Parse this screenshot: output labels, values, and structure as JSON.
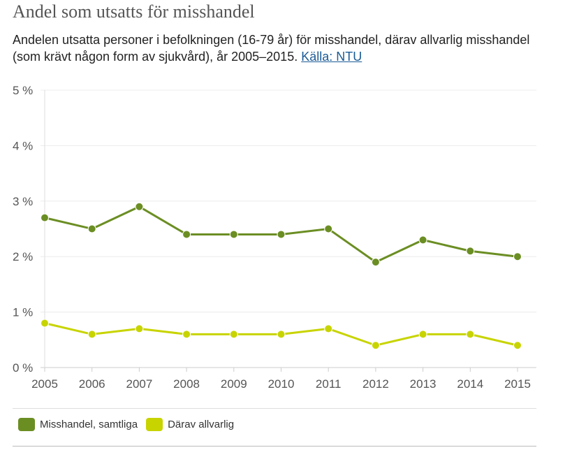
{
  "title": "Andel som utsatts för misshandel",
  "description": "Andelen utsatta personer i befolkningen (16-79 år) för misshandel, därav allvarlig misshandel (som krävt någon form av sjukvård), år 2005–2015.",
  "source_link": "Källa: NTU",
  "chart_data": {
    "type": "line",
    "categories": [
      "2005",
      "2006",
      "2007",
      "2008",
      "2009",
      "2010",
      "2011",
      "2012",
      "2013",
      "2014",
      "2015"
    ],
    "ylim": [
      0,
      5
    ],
    "yticks": [
      "0 %",
      "1 %",
      "2 %",
      "3 %",
      "4 %",
      "5 %"
    ],
    "grid": true,
    "legend_position": "bottom",
    "series": [
      {
        "name": "Misshandel, samtliga",
        "color": "#6b8e23",
        "values": [
          2.7,
          2.5,
          2.9,
          2.4,
          2.4,
          2.4,
          2.5,
          1.9,
          2.3,
          2.1,
          2.0
        ]
      },
      {
        "name": "Därav allvarlig",
        "color": "#c8d400",
        "values": [
          0.8,
          0.6,
          0.7,
          0.6,
          0.6,
          0.6,
          0.7,
          0.4,
          0.6,
          0.6,
          0.4
        ]
      }
    ]
  }
}
